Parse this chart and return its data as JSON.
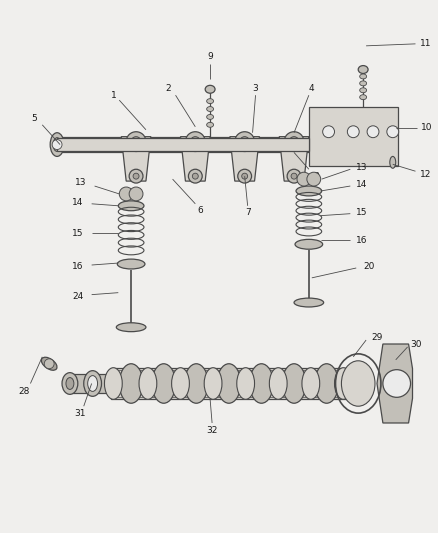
{
  "bg_color": "#f0efed",
  "line_color": "#4a4a4a",
  "fill_light": "#d8d5cf",
  "fill_mid": "#c2bfb8",
  "fill_dark": "#a8a49d",
  "fill_white": "#ebebeb",
  "label_color": "#1a1a1a",
  "label_fs": 6.5,
  "lw_part": 0.9,
  "lw_leader": 0.6
}
